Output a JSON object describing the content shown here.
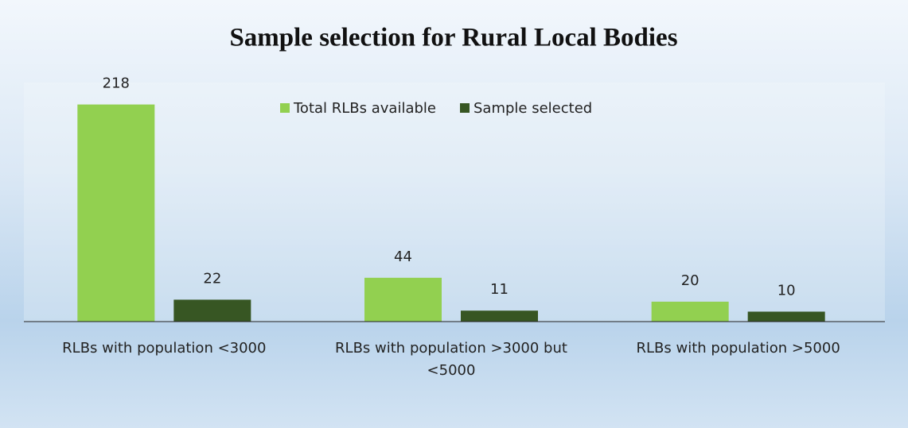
{
  "chart_data": {
    "type": "bar",
    "title": "Sample selection for Rural Local Bodies",
    "categories": [
      "RLBs with population <3000",
      "RLBs with population >3000 but <5000",
      "RLBs with population >5000"
    ],
    "series": [
      {
        "name": "Total RLBs available",
        "color": "#92d050",
        "values": [
          218,
          44,
          20
        ]
      },
      {
        "name": "Sample selected",
        "color": "#375623",
        "values": [
          22,
          11,
          10
        ]
      }
    ],
    "ylim": [
      0,
      240
    ],
    "legend": "top"
  }
}
